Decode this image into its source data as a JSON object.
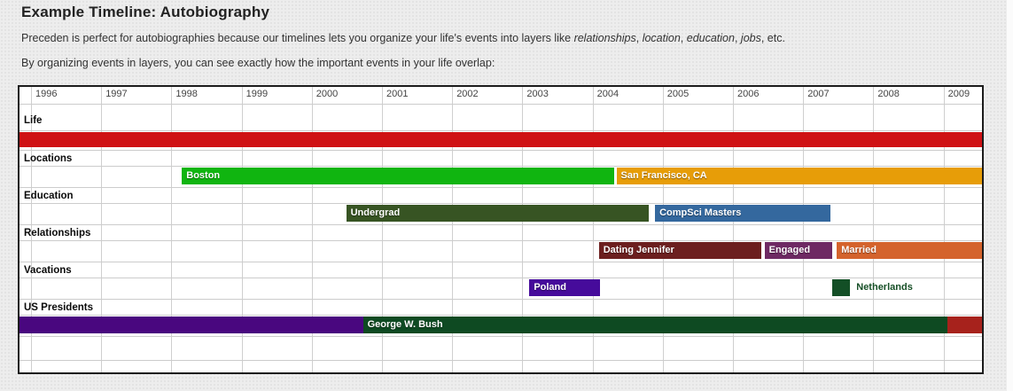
{
  "page": {
    "title": "Example Timeline: Autobiography",
    "intro_segments": [
      {
        "text": "Preceden is perfect for autobiographies because our timelines lets you organize your life's events into layers like ",
        "italic": false
      },
      {
        "text": "relationships",
        "italic": true
      },
      {
        "text": ", ",
        "italic": false
      },
      {
        "text": "location",
        "italic": true
      },
      {
        "text": ", ",
        "italic": false
      },
      {
        "text": "education",
        "italic": true
      },
      {
        "text": ", ",
        "italic": false
      },
      {
        "text": "jobs",
        "italic": true
      },
      {
        "text": ", etc.",
        "italic": false
      }
    ],
    "subtitle": "By organizing events in layers, you can see exactly how the important events in your life overlap:"
  },
  "timeline": {
    "axis": {
      "years": [
        "1996",
        "1997",
        "1998",
        "1999",
        "2000",
        "2001",
        "2002",
        "2003",
        "2004",
        "2005",
        "2006",
        "2007",
        "2008",
        "2009"
      ],
      "start_year": 1996,
      "end_year": 2009
    },
    "grid_color": "#cfcfcf",
    "layers": [
      {
        "name": "Life",
        "events": [
          {
            "label": "",
            "start": 1995.5,
            "end": 2009.8,
            "color": "#cf1215"
          }
        ]
      },
      {
        "name": "Locations",
        "events": [
          {
            "label": "Boston",
            "start": 1998.15,
            "end": 2004.31,
            "color": "#10b510"
          },
          {
            "label": "San Francisco, CA",
            "start": 2004.34,
            "end": 2009.8,
            "color": "#e79d08"
          }
        ]
      },
      {
        "name": "Education",
        "events": [
          {
            "label": "Undergrad",
            "start": 2000.49,
            "end": 2004.8,
            "color": "#375423"
          },
          {
            "label": "CompSci Masters",
            "start": 2004.89,
            "end": 2007.39,
            "color": "#34689e"
          }
        ]
      },
      {
        "name": "Relationships",
        "events": [
          {
            "label": "Dating Jennifer",
            "start": 2004.09,
            "end": 2006.4,
            "color": "#6c1f1f"
          },
          {
            "label": "Engaged",
            "start": 2006.45,
            "end": 2007.42,
            "color": "#6e2963"
          },
          {
            "label": "Married",
            "start": 2007.48,
            "end": 2009.8,
            "color": "#d4632c"
          }
        ]
      },
      {
        "name": "Vacations",
        "events": [
          {
            "label": "Poland",
            "start": 2003.1,
            "end": 2004.1,
            "color": "#460b9b"
          },
          {
            "label": "Netherlands",
            "start": 2007.42,
            "end": 2007.67,
            "color": "#134f26",
            "label_outside": true,
            "label_color": "#164f26"
          }
        ]
      },
      {
        "name": "US Presidents",
        "events": [
          {
            "label": "",
            "start": 1995.5,
            "end": 2000.73,
            "color": "#49077f"
          },
          {
            "label": "George W. Bush",
            "start": 2000.73,
            "end": 2009.06,
            "color": "#0e4a22"
          },
          {
            "label": "",
            "start": 2009.06,
            "end": 2009.8,
            "color": "#a7221c"
          }
        ]
      }
    ],
    "trailing_empty_rows": 2
  }
}
